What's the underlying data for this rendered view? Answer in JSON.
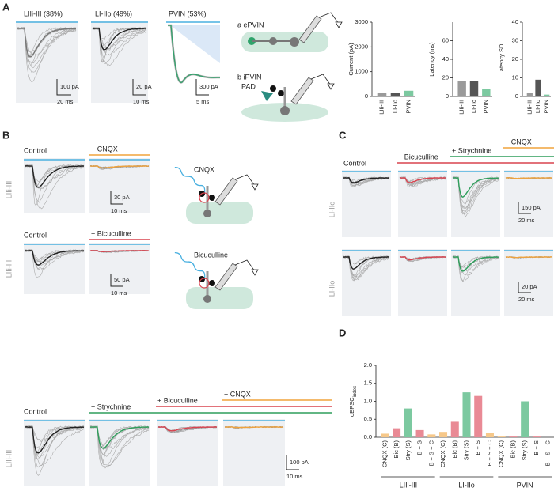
{
  "panel_labels": [
    "A",
    "B",
    "C",
    "D"
  ],
  "A": {
    "titles": [
      "LIIi-III (38%)",
      "LI-IIo (49%)",
      "PVIN (53%)"
    ],
    "scale_bars": [
      [
        "100 pA",
        "20 ms"
      ],
      [
        "20 pA",
        "10 ms"
      ],
      [
        "300 pA",
        "5 ms"
      ]
    ],
    "schematic": {
      "a": "a ePVIN",
      "b": "b iPVIN",
      "pad": "PAD"
    }
  },
  "B": {
    "rows": [
      {
        "side": "LIIi-III",
        "conditions": [
          "Control",
          "+ CNQX"
        ],
        "scale": [
          "30 pA",
          "10 ms"
        ],
        "drug": "CNQX"
      },
      {
        "side": "LIIi-III",
        "conditions": [
          "Control",
          "+ Bicuculline"
        ],
        "scale": [
          "50 pA",
          "10 ms"
        ],
        "drug": "Bicuculline"
      },
      {
        "side": "LIIi-III",
        "conditions": [
          "Control",
          "+ Strychnine",
          "+ Bicuculline",
          "+ CNQX"
        ],
        "scale": [
          "100 pA",
          "10 ms"
        ]
      }
    ]
  },
  "C": {
    "conditions": [
      "Control",
      "+ Bicuculline",
      "+ Strychnine",
      "+ CNQX"
    ],
    "rows": [
      {
        "side": "LI-IIo",
        "scale": [
          "150 pA",
          "20 ms"
        ]
      },
      {
        "side": "LI-IIo",
        "scale": [
          "20 pA",
          "20 ms"
        ]
      }
    ]
  },
  "chart_data": [
    {
      "type": "bar",
      "y_label": "Current (pA)",
      "categories": [
        "LIIi-III",
        "LI-IIo",
        "PVIN"
      ],
      "values": [
        150,
        130,
        230
      ],
      "colors": [
        "#9a9a9a",
        "#555555",
        "#7cc9a0"
      ],
      "ylim": [
        0,
        3000
      ],
      "yticks": [
        0,
        1000,
        2000,
        3000
      ]
    },
    {
      "type": "bar",
      "y_label": "Latency (ms)",
      "categories": [
        "LIIi-III",
        "LI-IIo",
        "PVIN"
      ],
      "values": [
        17,
        17,
        8
      ],
      "colors": [
        "#9a9a9a",
        "#555555",
        "#7cc9a0"
      ],
      "ylim": [
        0,
        80
      ],
      "yticks": [
        0,
        20,
        40,
        60
      ]
    },
    {
      "type": "bar",
      "y_label": "Latency SD",
      "categories": [
        "LIIi-III",
        "LI-IIo",
        "PVIN"
      ],
      "values": [
        2,
        9,
        1
      ],
      "colors": [
        "#9a9a9a",
        "#555555",
        "#7cc9a0"
      ],
      "ylim": [
        0,
        40
      ],
      "yticks": [
        0,
        10,
        20,
        30,
        40
      ]
    },
    {
      "type": "bar",
      "y_label": "oEPSC",
      "y_label_sub": "index",
      "categories": [
        "CNQX (C)",
        "Bic (B)",
        "Stry (S)",
        "B + S",
        "B + S + C",
        "CNQX (C)",
        "Bic (B)",
        "Stry (S)",
        "B + S",
        "B + S + C",
        "CNQX (C)",
        "Bic (B)",
        "Stry (S)",
        "B + S",
        "B + S + C"
      ],
      "values": [
        0.1,
        0.25,
        0.8,
        0.2,
        0.08,
        0.15,
        0.43,
        1.25,
        1.15,
        0.12,
        0.02,
        0.02,
        1.0,
        0.02,
        0
      ],
      "colors": [
        "#f6c88a",
        "#e98a95",
        "#7cc9a0",
        "#e98a95",
        "#f6c88a",
        "#f6c88a",
        "#e98a95",
        "#7cc9a0",
        "#e98a95",
        "#f6c88a",
        "#f6c88a",
        "#e98a95",
        "#7cc9a0",
        "#e98a95",
        "#f6c88a"
      ],
      "groups": [
        "LIIi-III",
        "LI-IIo",
        "PVIN"
      ],
      "ylim": [
        0,
        2
      ],
      "yticks": [
        {
          "value": 0,
          "label": "0.0"
        },
        {
          "value": 0.5,
          "label": "0.5"
        },
        {
          "value": 1,
          "label": "1.0"
        },
        {
          "value": 1.5,
          "label": "1.5"
        },
        {
          "value": 2,
          "label": "2.0"
        }
      ]
    }
  ]
}
